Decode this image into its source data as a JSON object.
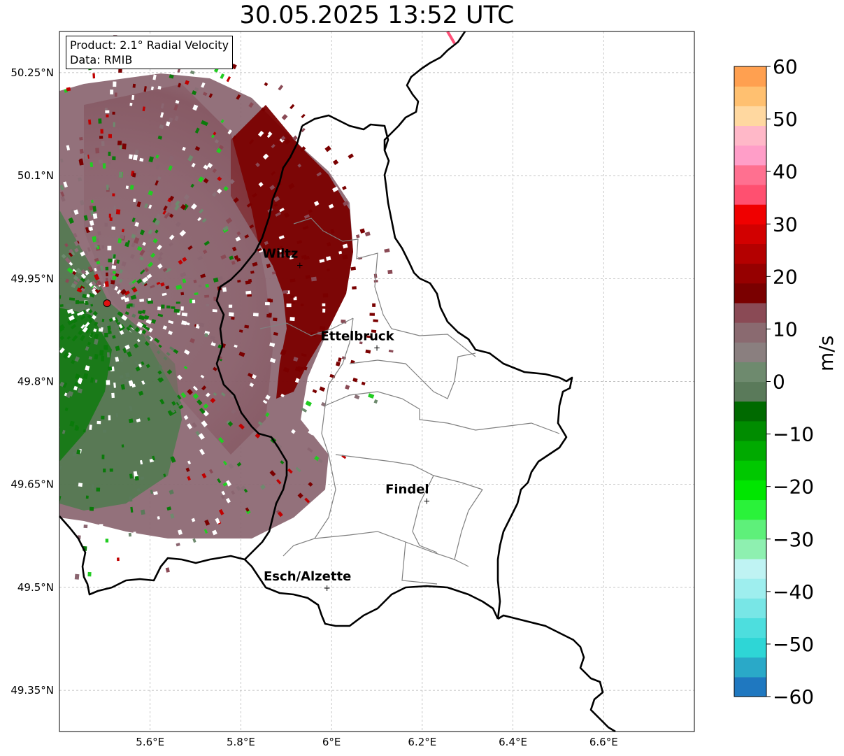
{
  "title": "30.05.2025 13:52 UTC",
  "info": {
    "product": "Product: 2.1° Radial Velocity",
    "data": "Data: RMIB"
  },
  "map": {
    "lon_range": [
      5.4,
      6.8
    ],
    "lat_range": [
      49.29,
      50.31
    ],
    "lon_ticks": [
      {
        "value": 5.6,
        "label": "5.6°E"
      },
      {
        "value": 5.8,
        "label": "5.8°E"
      },
      {
        "value": 6.0,
        "label": "6°E"
      },
      {
        "value": 6.2,
        "label": "6.2°E"
      },
      {
        "value": 6.4,
        "label": "6.4°E"
      },
      {
        "value": 6.6,
        "label": "6.6°E"
      }
    ],
    "lat_ticks": [
      {
        "value": 50.25,
        "label": "50.25°N"
      },
      {
        "value": 50.1,
        "label": "50.1°N"
      },
      {
        "value": 49.95,
        "label": "49.95°N"
      },
      {
        "value": 49.8,
        "label": "49.8°N"
      },
      {
        "value": 49.65,
        "label": "49.65°N"
      },
      {
        "value": 49.5,
        "label": "49.5°N"
      },
      {
        "value": 49.35,
        "label": "49.35°N"
      }
    ],
    "grid": true,
    "radar_site": {
      "lon": 5.505,
      "lat": 49.914
    },
    "cities": [
      {
        "name": "Wiltz",
        "lon": 5.93,
        "lat": 49.97
      },
      {
        "name": "Ettelbruck",
        "lon": 6.1,
        "lat": 49.85
      },
      {
        "name": "Findel",
        "lon": 6.21,
        "lat": 49.627
      },
      {
        "name": "Esch/Alzette",
        "lon": 5.99,
        "lat": 49.5
      }
    ]
  },
  "colorbar": {
    "unit": "m/s",
    "range": [
      -60,
      60
    ],
    "ticks": [
      {
        "value": 60,
        "label": "60"
      },
      {
        "value": 50,
        "label": "50"
      },
      {
        "value": 40,
        "label": "40"
      },
      {
        "value": 30,
        "label": "30"
      },
      {
        "value": 20,
        "label": "20"
      },
      {
        "value": 10,
        "label": "10"
      },
      {
        "value": 0,
        "label": "0"
      },
      {
        "value": -10,
        "label": "−10"
      },
      {
        "value": -20,
        "label": "−20"
      },
      {
        "value": -30,
        "label": "−30"
      },
      {
        "value": -40,
        "label": "−40"
      },
      {
        "value": -50,
        "label": "−50"
      },
      {
        "value": -60,
        "label": "−60"
      }
    ],
    "colors": [
      "#1f78c0",
      "#2aa9c8",
      "#2ed6d6",
      "#4ddede",
      "#78e6e6",
      "#9eeeee",
      "#bff3f3",
      "#8ef0b0",
      "#5ef07a",
      "#2af23a",
      "#00e600",
      "#00c800",
      "#00aa00",
      "#008c00",
      "#006a00",
      "#5a7a5a",
      "#6e8a6e",
      "#8a7f7f",
      "#8a6a70",
      "#8a4a55",
      "#7a0000",
      "#960000",
      "#b40000",
      "#d20000",
      "#f00000",
      "#ff5070",
      "#ff7090",
      "#ff9ec8",
      "#ffb8c8",
      "#ffd8a0",
      "#ffc070",
      "#ffa050"
    ]
  }
}
